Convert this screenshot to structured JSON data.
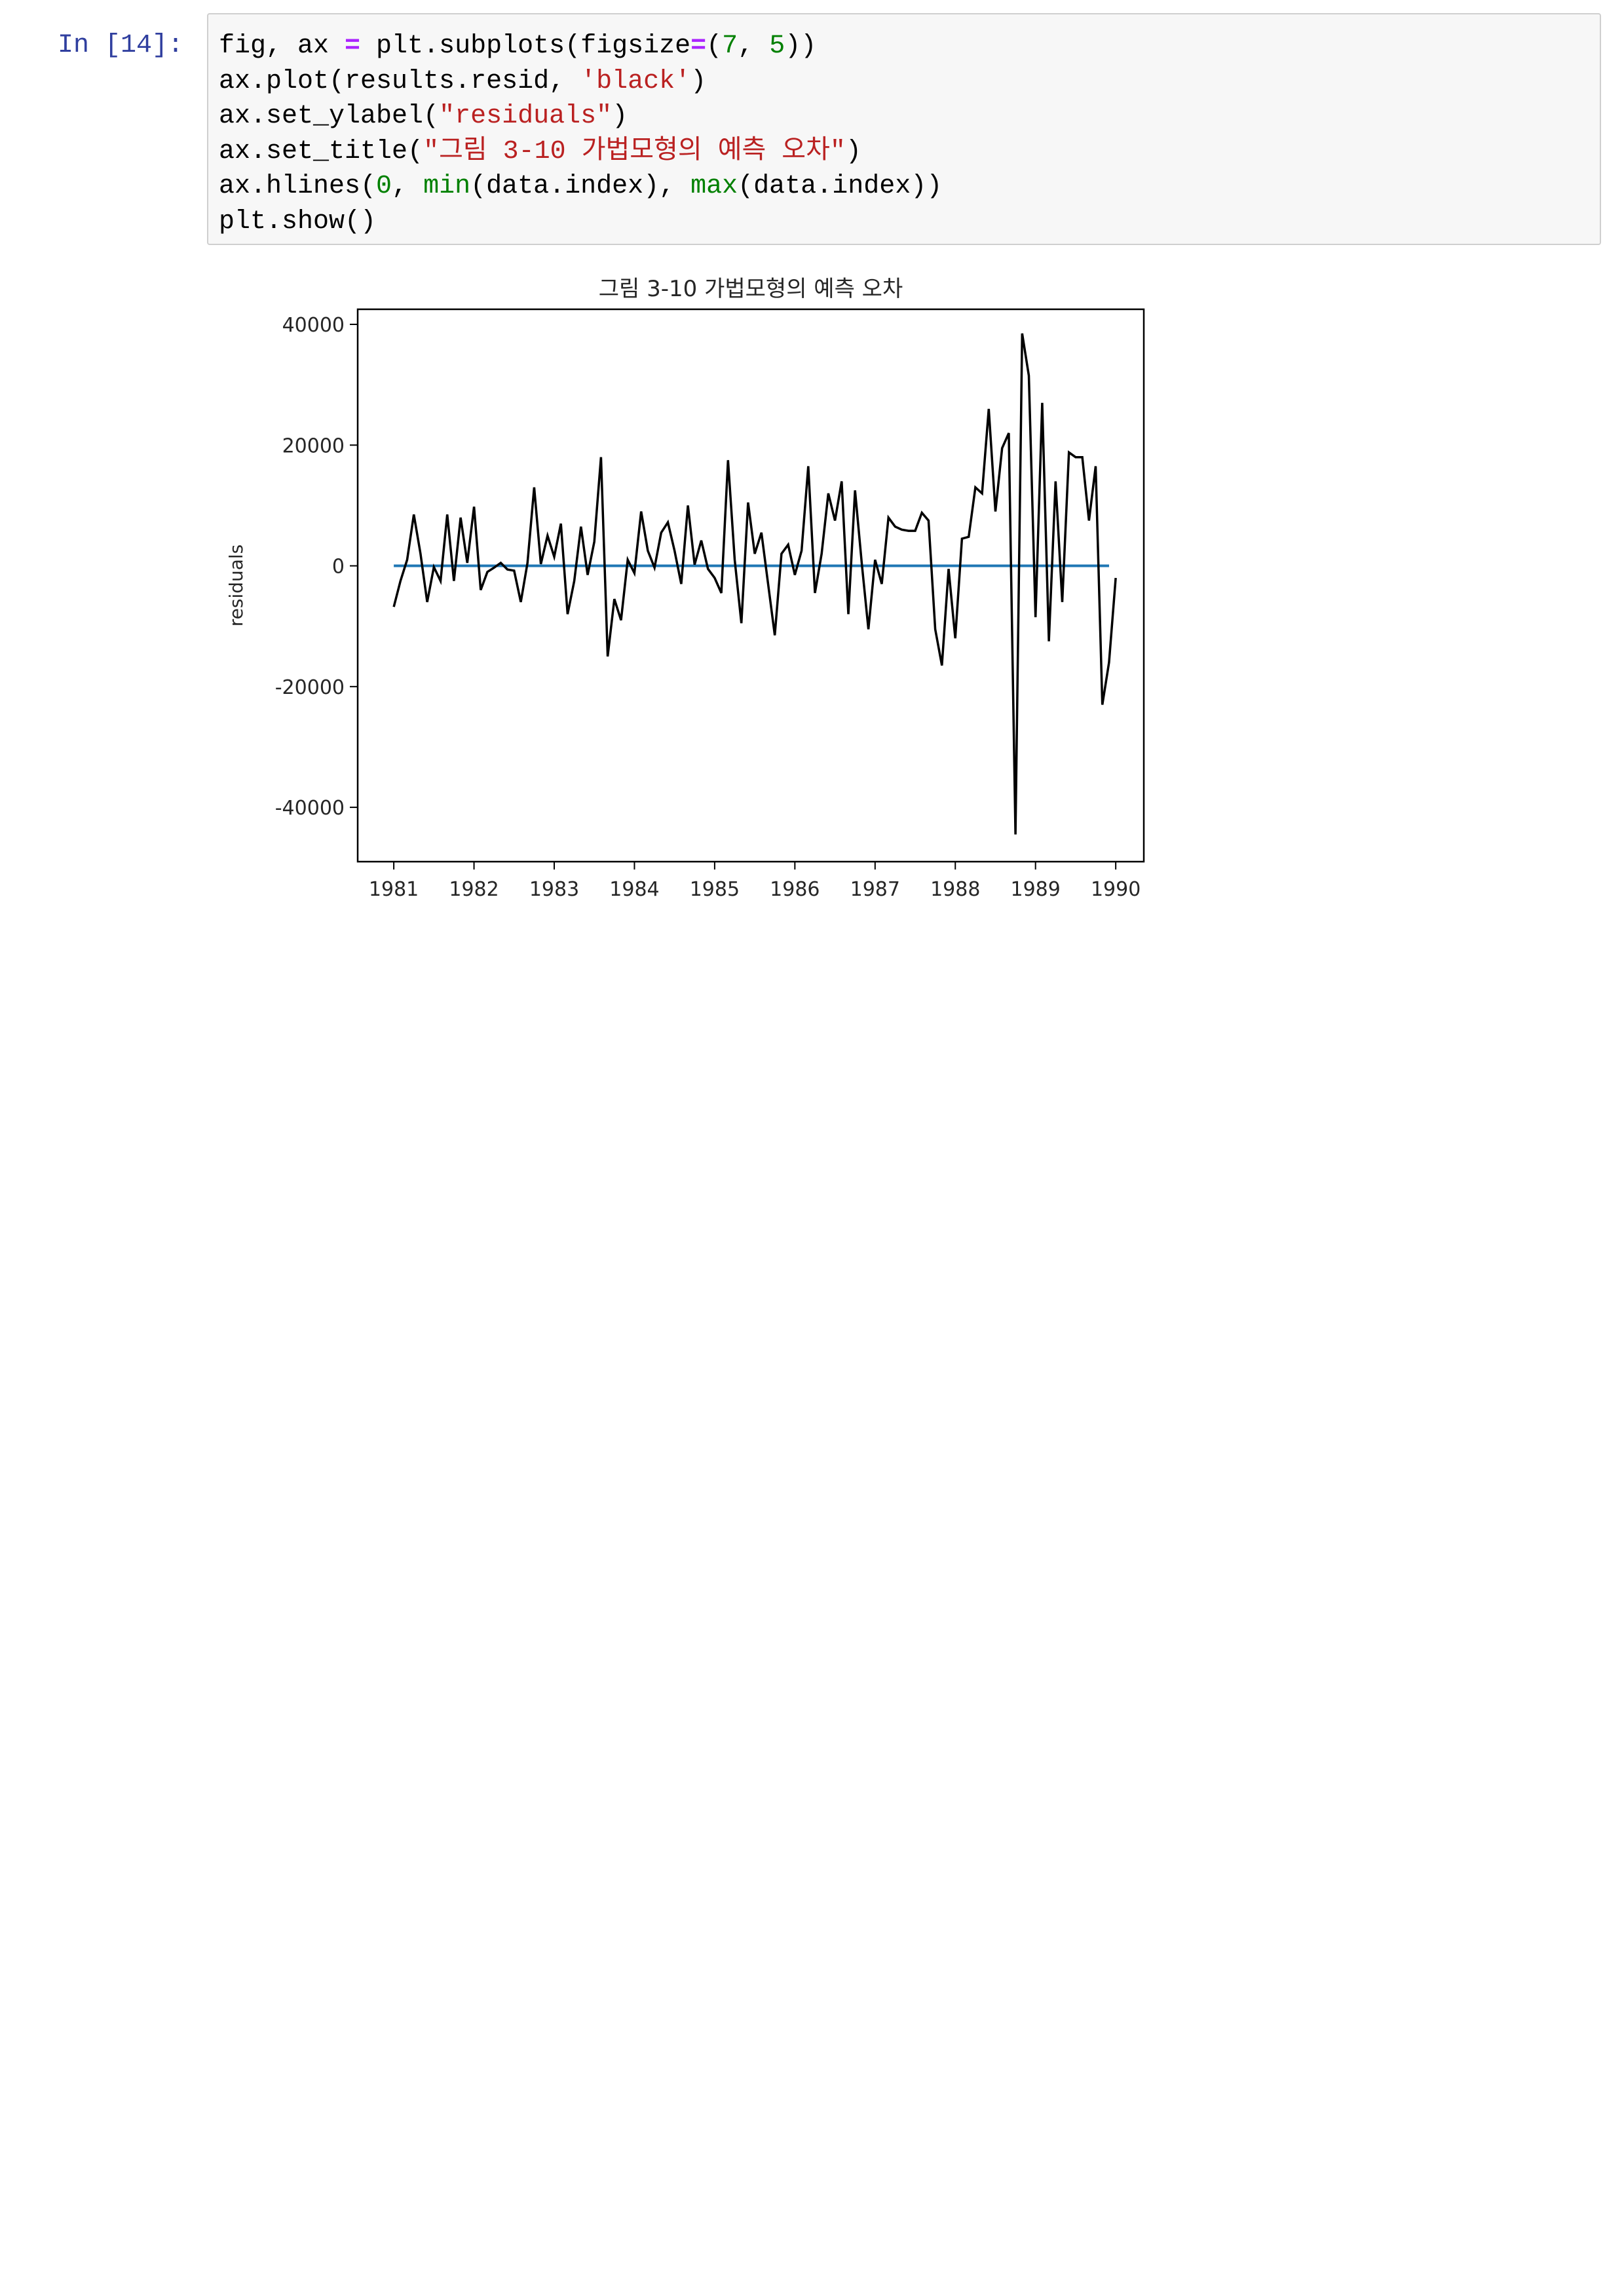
{
  "cell": {
    "prompt": "In [14]:",
    "code_lines": [
      [
        {
          "t": "fig, ax ",
          "c": "plain"
        },
        {
          "t": "=",
          "c": "op"
        },
        {
          "t": " plt.subplots(figsize",
          "c": "plain"
        },
        {
          "t": "=",
          "c": "op"
        },
        {
          "t": "(",
          "c": "plain"
        },
        {
          "t": "7",
          "c": "num"
        },
        {
          "t": ", ",
          "c": "plain"
        },
        {
          "t": "5",
          "c": "num"
        },
        {
          "t": "))",
          "c": "plain"
        }
      ],
      [
        {
          "t": "ax.plot(results.resid, ",
          "c": "plain"
        },
        {
          "t": "'black'",
          "c": "str"
        },
        {
          "t": ")",
          "c": "plain"
        }
      ],
      [
        {
          "t": "ax.set_ylabel(",
          "c": "plain"
        },
        {
          "t": "\"residuals\"",
          "c": "str"
        },
        {
          "t": ")",
          "c": "plain"
        }
      ],
      [
        {
          "t": "ax.set_title(",
          "c": "plain"
        },
        {
          "t": "\"그림 3-10 가법모형의 예측 오차\"",
          "c": "str"
        },
        {
          "t": ")",
          "c": "plain"
        }
      ],
      [
        {
          "t": "ax.hlines(",
          "c": "plain"
        },
        {
          "t": "0",
          "c": "num"
        },
        {
          "t": ", ",
          "c": "plain"
        },
        {
          "t": "min",
          "c": "bi"
        },
        {
          "t": "(data.index), ",
          "c": "plain"
        },
        {
          "t": "max",
          "c": "bi"
        },
        {
          "t": "(data.index))",
          "c": "plain"
        }
      ],
      [
        {
          "t": "plt.show()",
          "c": "plain"
        }
      ]
    ]
  },
  "chart_data": {
    "type": "line",
    "title": "그림 3-10 가법모형의 예측 오차",
    "ylabel": "residuals",
    "xlabel": "",
    "xlim": [
      1980.55,
      1990.35
    ],
    "ylim": [
      -49000,
      42500
    ],
    "x_ticks": [
      1981,
      1982,
      1983,
      1984,
      1985,
      1986,
      1987,
      1988,
      1989,
      1990
    ],
    "x_tick_labels": [
      "1981",
      "1982",
      "1983",
      "1984",
      "1985",
      "1986",
      "1987",
      "1988",
      "1989",
      "1990"
    ],
    "y_ticks": [
      -40000,
      -20000,
      0,
      20000,
      40000
    ],
    "y_tick_labels": [
      "-40000",
      "-20000",
      "0",
      "20000",
      "40000"
    ],
    "grid": false,
    "series": [
      {
        "color": "#000000",
        "x_start": 1981.0,
        "x_step": 0.0833333,
        "values": [
          -6800,
          -2500,
          1000,
          8500,
          2000,
          -6000,
          -200,
          -2500,
          8500,
          -2500,
          8000,
          500,
          9800,
          -4000,
          -1000,
          -300,
          500,
          -600,
          -800,
          -6000,
          500,
          13000,
          300,
          5000,
          1500,
          7000,
          -8000,
          -2500,
          6500,
          -1500,
          4000,
          18000,
          -15000,
          -5500,
          -9000,
          1000,
          -1200,
          9000,
          2500,
          -300,
          5500,
          7200,
          2500,
          -3000,
          10000,
          200,
          4200,
          -500,
          -2000,
          -4500,
          17500,
          1000,
          -9500,
          10500,
          2000,
          5500,
          -3000,
          -11500,
          2000,
          3500,
          -1500,
          2500,
          16500,
          -4500,
          2000,
          12000,
          7500,
          14000,
          -8000,
          12500,
          500,
          -10500,
          1000,
          -3000,
          8000,
          6500,
          6000,
          5800,
          5800,
          8800,
          7500,
          -10500,
          -16500,
          -500,
          -12000,
          4500,
          4800,
          13000,
          12000,
          26000,
          9000,
          19500,
          22000,
          -44500,
          38500,
          31500,
          -8500,
          27000,
          -12500,
          14000,
          -6000,
          18800,
          18000,
          18000,
          7500,
          16500,
          -23000,
          -16000,
          -2000
        ]
      }
    ],
    "hline": {
      "y": 0,
      "x_from": 1981.0,
      "x_to": 1989.917,
      "color": "#1f77b4"
    },
    "colors": {
      "series": "#000000",
      "hline": "#1f77b4",
      "axes": "#000000",
      "text": "#262626"
    }
  }
}
